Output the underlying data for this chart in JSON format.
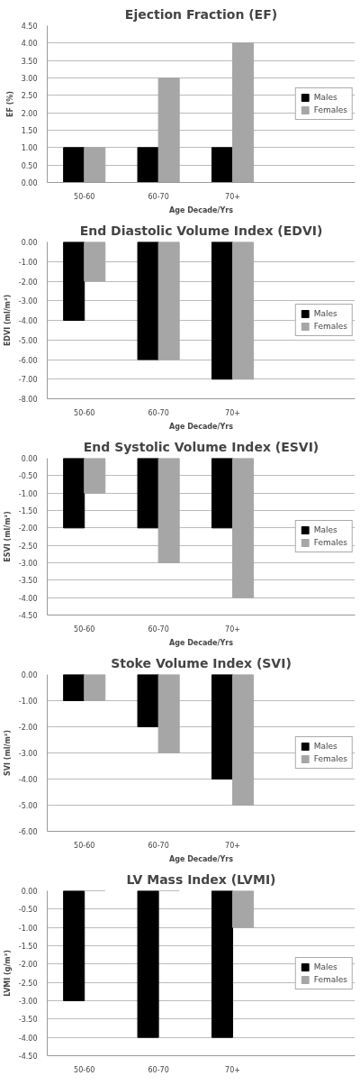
{
  "chart_data": [
    {
      "type": "bar",
      "title": "Ejection Fraction (EF)",
      "xlabel": "Age Decade/Yrs",
      "ylabel": "EF (%)",
      "categories": [
        "50-60",
        "60-70",
        "70+"
      ],
      "series": [
        {
          "name": "Males",
          "color": "#000000",
          "values": [
            1,
            1,
            1
          ]
        },
        {
          "name": "Females",
          "color": "#a6a6a6",
          "values": [
            1,
            3,
            4
          ]
        }
      ],
      "ylim": [
        0,
        4.5
      ],
      "yticks": [
        {
          "value": 0,
          "label": "0.00"
        },
        {
          "value": 0.5,
          "label": "0.50"
        },
        {
          "value": 1,
          "label": "1.00"
        },
        {
          "value": 1.5,
          "label": "1.50"
        },
        {
          "value": 2,
          "label": "2.00"
        },
        {
          "value": 2.5,
          "label": "2.50"
        },
        {
          "value": 3,
          "label": "3.00"
        },
        {
          "value": 3.5,
          "label": "3.50"
        },
        {
          "value": 4,
          "label": "4.00"
        },
        {
          "value": 4.5,
          "label": "4.50"
        }
      ],
      "grid": "y",
      "legend": "right"
    },
    {
      "type": "bar",
      "title": "End Diastolic Volume Index (EDVI)",
      "xlabel": "Age Decade/Yrs",
      "ylabel": "EDVI (ml/m²)",
      "categories": [
        "50-60",
        "60-70",
        "70+"
      ],
      "series": [
        {
          "name": "Males",
          "color": "#000000",
          "values": [
            -4,
            -6,
            -7
          ]
        },
        {
          "name": "Females",
          "color": "#a6a6a6",
          "values": [
            -2,
            -6,
            -7
          ]
        }
      ],
      "ylim": [
        -8,
        0
      ],
      "yticks": [
        {
          "value": 0,
          "label": "0.00"
        },
        {
          "value": -1,
          "label": "-1.00"
        },
        {
          "value": -2,
          "label": "-2.00"
        },
        {
          "value": -3,
          "label": "-3.00"
        },
        {
          "value": -4,
          "label": "-4.00"
        },
        {
          "value": -5,
          "label": "-5.00"
        },
        {
          "value": -6,
          "label": "-6.00"
        },
        {
          "value": -7,
          "label": "-7.00"
        },
        {
          "value": -8,
          "label": "-8.00"
        }
      ],
      "grid": "y",
      "legend": "right"
    },
    {
      "type": "bar",
      "title": "End Systolic Volume Index (ESVI)",
      "xlabel": "Age Decade/Yrs",
      "ylabel": "ESVI (ml/m²)",
      "categories": [
        "50-60",
        "60-70",
        "70+"
      ],
      "series": [
        {
          "name": "Males",
          "color": "#000000",
          "values": [
            -2,
            -2,
            -2
          ]
        },
        {
          "name": "Females",
          "color": "#a6a6a6",
          "values": [
            -1,
            -3,
            -4
          ]
        }
      ],
      "ylim": [
        -4.5,
        0
      ],
      "yticks": [
        {
          "value": 0,
          "label": "0.00"
        },
        {
          "value": -0.5,
          "label": "-0.50"
        },
        {
          "value": -1,
          "label": "-1.00"
        },
        {
          "value": -1.5,
          "label": "-1.50"
        },
        {
          "value": -2,
          "label": "-2.00"
        },
        {
          "value": -2.5,
          "label": "-2.50"
        },
        {
          "value": -3,
          "label": "-3.00"
        },
        {
          "value": -3.5,
          "label": "-3.50"
        },
        {
          "value": -4,
          "label": "-4.00"
        },
        {
          "value": -4.5,
          "label": "-4.50"
        }
      ],
      "grid": "y",
      "legend": "right"
    },
    {
      "type": "bar",
      "title": "Stoke Volume Index (SVI)",
      "xlabel": "Age Decade/Yrs",
      "ylabel": "SVI (ml/m²)",
      "categories": [
        "50-60",
        "60-70",
        "70+"
      ],
      "series": [
        {
          "name": "Males",
          "color": "#000000",
          "values": [
            -1,
            -2,
            -4
          ]
        },
        {
          "name": "Females",
          "color": "#a6a6a6",
          "values": [
            -1,
            -3,
            -5
          ]
        }
      ],
      "ylim": [
        -6,
        0
      ],
      "yticks": [
        {
          "value": 0,
          "label": "0.00"
        },
        {
          "value": -1,
          "label": "-1.00"
        },
        {
          "value": -2,
          "label": "-2.00"
        },
        {
          "value": -3,
          "label": "-3.00"
        },
        {
          "value": -4,
          "label": "-4.00"
        },
        {
          "value": -5,
          "label": "-5.00"
        },
        {
          "value": -6,
          "label": "-6.00"
        }
      ],
      "grid": "y",
      "legend": "right"
    },
    {
      "type": "bar",
      "title": "LV Mass Index (LVMI)",
      "ylabel": "LVMI (g/m²)",
      "categories": [
        "50-60",
        "60-70",
        "70+"
      ],
      "series": [
        {
          "name": "Males",
          "color": "#000000",
          "values": [
            -3,
            -4,
            -4
          ]
        },
        {
          "name": "Females",
          "color": "#a6a6a6",
          "values": [
            0,
            0,
            -1
          ]
        }
      ],
      "ylim": [
        -4.5,
        0
      ],
      "yticks": [
        {
          "value": 0,
          "label": "0.00"
        },
        {
          "value": -0.5,
          "label": "-0.50"
        },
        {
          "value": -1,
          "label": "-1.00"
        },
        {
          "value": -1.5,
          "label": "-1.50"
        },
        {
          "value": -2,
          "label": "-2.00"
        },
        {
          "value": -2.5,
          "label": "-2.50"
        },
        {
          "value": -3,
          "label": "-3.00"
        },
        {
          "value": -3.5,
          "label": "-3.50"
        },
        {
          "value": -4,
          "label": "-4.00"
        },
        {
          "value": -4.5,
          "label": "-4.50"
        }
      ],
      "grid": "y",
      "legend": "right"
    }
  ]
}
